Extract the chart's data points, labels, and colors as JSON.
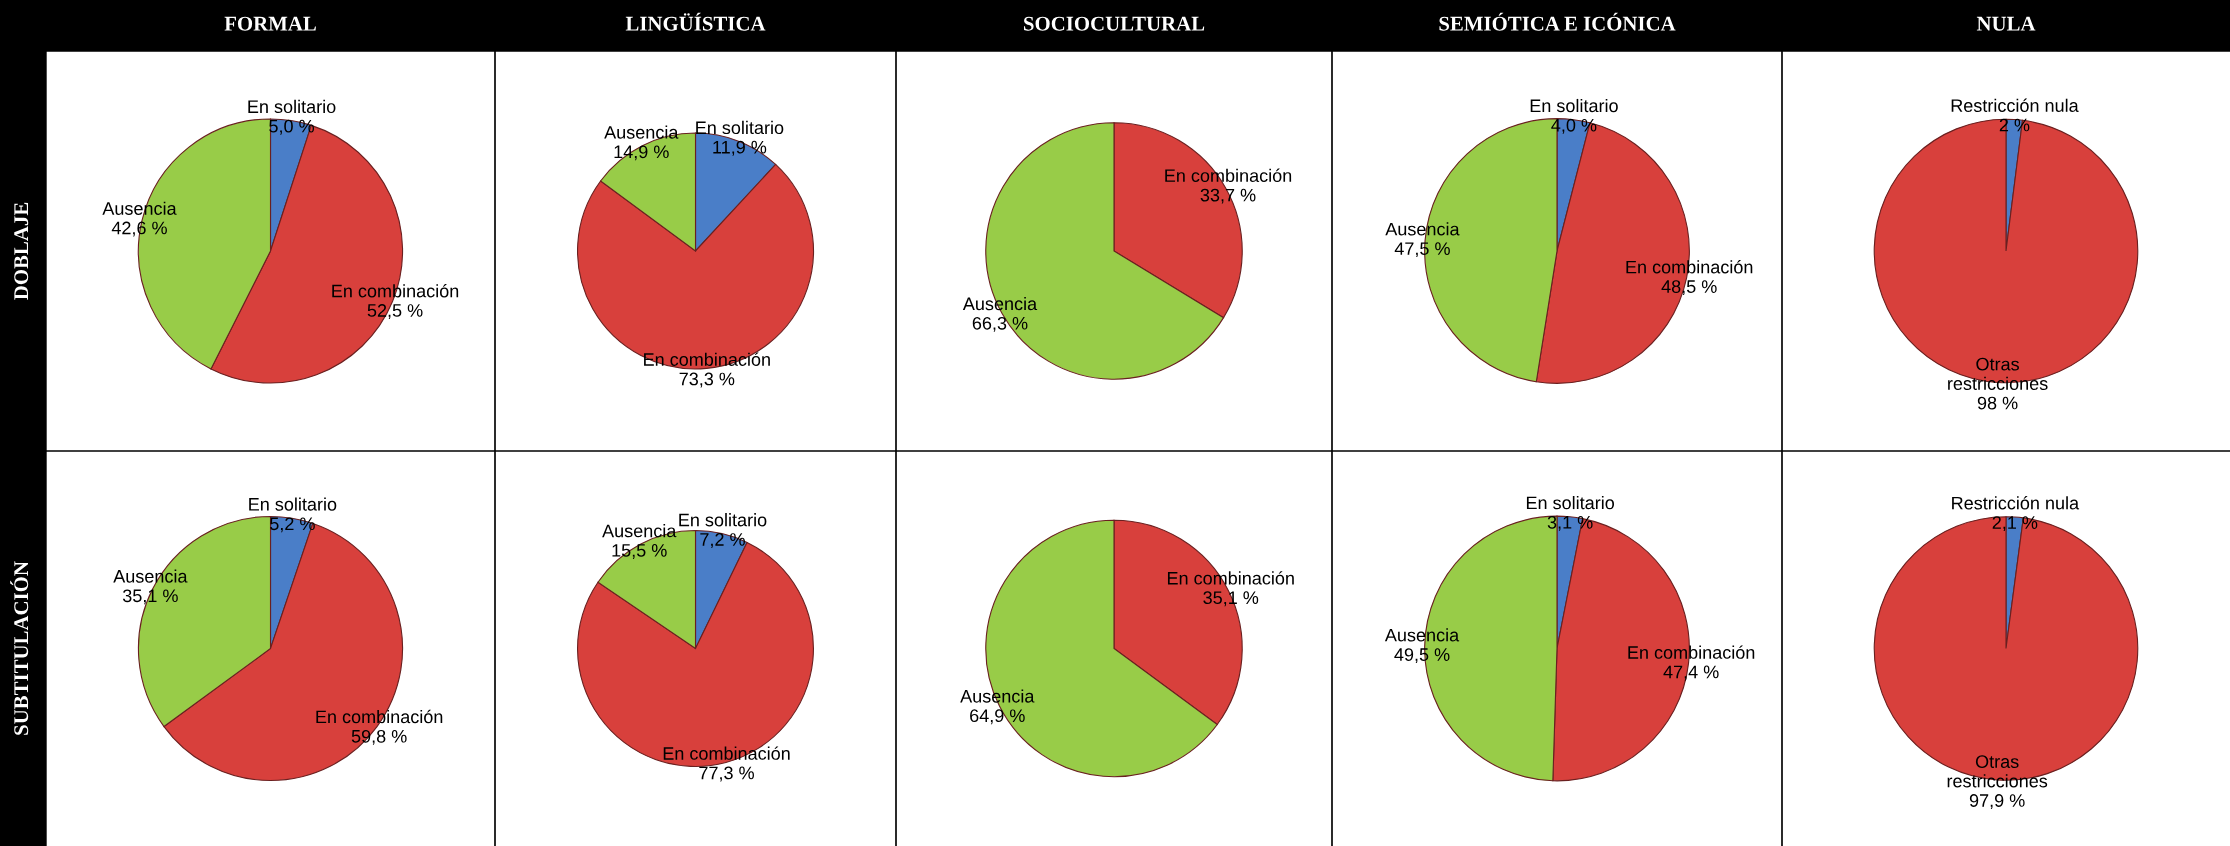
{
  "chart_data": [
    {
      "type": "pie",
      "title": "FORMAL",
      "ylabel": "DOBLAJE",
      "categories": [
        "En solitario",
        "En combinación",
        "Ausencia"
      ],
      "values": [
        5.0,
        52.5,
        42.6
      ],
      "value_labels": [
        "5,0 %",
        "52,5 %",
        "42,6 %"
      ],
      "colors": [
        "#4a7ec8",
        "#d8403c",
        "#98cc48"
      ]
    },
    {
      "type": "pie",
      "title": "LINGÜÍSTICA",
      "categories": [
        "En solitario",
        "En combinación",
        "Ausencia"
      ],
      "values": [
        11.9,
        73.3,
        14.9
      ],
      "value_labels": [
        "11,9 %",
        "73,3 %",
        "14,9 %"
      ],
      "colors": [
        "#4a7ec8",
        "#d8403c",
        "#98cc48"
      ]
    },
    {
      "type": "pie",
      "title": "SOCIOCULTURAL",
      "categories": [
        "En combinación",
        "Ausencia"
      ],
      "values": [
        33.7,
        66.3
      ],
      "value_labels": [
        "33,7 %",
        "66,3 %"
      ],
      "colors": [
        "#d8403c",
        "#98cc48"
      ]
    },
    {
      "type": "pie",
      "title": "SEMIÓTICA E ICÓNICA",
      "categories": [
        "En solitario",
        "En combinación",
        "Ausencia"
      ],
      "values": [
        4.0,
        48.5,
        47.5
      ],
      "value_labels": [
        "4,0 %",
        "48,5 %",
        "47,5 %"
      ],
      "colors": [
        "#4a7ec8",
        "#d8403c",
        "#98cc48"
      ]
    },
    {
      "type": "pie",
      "title": "NULA",
      "categories": [
        "Restricción nula",
        "Otras\nrestricciones"
      ],
      "values": [
        2,
        98
      ],
      "value_labels": [
        "2 %",
        "98 %"
      ],
      "colors": [
        "#4a7ec8",
        "#d8403c"
      ]
    },
    {
      "type": "pie",
      "ylabel": "SUBTITULACIÓN",
      "categories": [
        "En solitario",
        "En combinación",
        "Ausencia"
      ],
      "values": [
        5.2,
        59.8,
        35.1
      ],
      "value_labels": [
        "5,2 %",
        "59,8 %",
        "35,1 %"
      ],
      "colors": [
        "#4a7ec8",
        "#d8403c",
        "#98cc48"
      ]
    },
    {
      "type": "pie",
      "categories": [
        "En solitario",
        "En combinación",
        "Ausencia"
      ],
      "values": [
        7.2,
        77.3,
        15.5
      ],
      "value_labels": [
        "7,2 %",
        "77,3 %",
        "15,5 %"
      ],
      "colors": [
        "#4a7ec8",
        "#d8403c",
        "#98cc48"
      ]
    },
    {
      "type": "pie",
      "categories": [
        "En combinación",
        "Ausencia"
      ],
      "values": [
        35.1,
        64.9
      ],
      "value_labels": [
        "35,1 %",
        "64,9 %"
      ],
      "colors": [
        "#d8403c",
        "#98cc48"
      ]
    },
    {
      "type": "pie",
      "categories": [
        "En solitario",
        "En combinación",
        "Ausencia"
      ],
      "values": [
        3.1,
        47.4,
        49.5
      ],
      "value_labels": [
        "3,1 %",
        "47,4 %",
        "49,5 %"
      ],
      "colors": [
        "#4a7ec8",
        "#d8403c",
        "#98cc48"
      ]
    },
    {
      "type": "pie",
      "categories": [
        "Restricción nula",
        "Otras\nrestricciones"
      ],
      "values": [
        2.1,
        97.9
      ],
      "value_labels": [
        "2,1 %",
        "97,9 %"
      ],
      "colors": [
        "#4a7ec8",
        "#d8403c"
      ]
    }
  ]
}
